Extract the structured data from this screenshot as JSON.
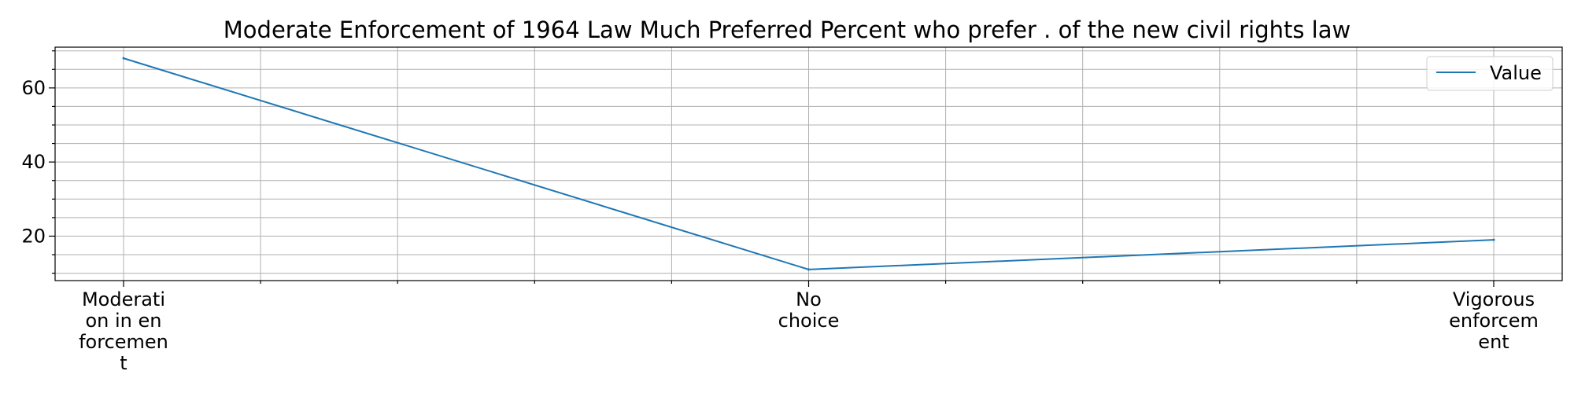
{
  "chart_data": {
    "type": "line",
    "title": "Moderate Enforcement of 1964 Law Much Preferred Percent who prefer . of the new civil rights law",
    "xlabel": "",
    "ylabel": "",
    "categories": [
      "Moderati on in en forcemen t",
      "No choice",
      "Vigorous enforcem ent"
    ],
    "category_lines": [
      [
        "Moderati",
        "on in en",
        "forcemen",
        "t"
      ],
      [
        "No",
        "choice"
      ],
      [
        "Vigorous",
        "enforcem",
        "ent"
      ]
    ],
    "series": [
      {
        "name": "Value",
        "values": [
          68,
          11,
          19
        ],
        "color": "#1f77b4"
      }
    ],
    "ylim": [
      8,
      71
    ],
    "yticks": [
      20,
      40,
      60
    ],
    "y_minor_step": 5,
    "x_minor_per_major": 5,
    "grid": true,
    "legend_position": "top-right"
  }
}
